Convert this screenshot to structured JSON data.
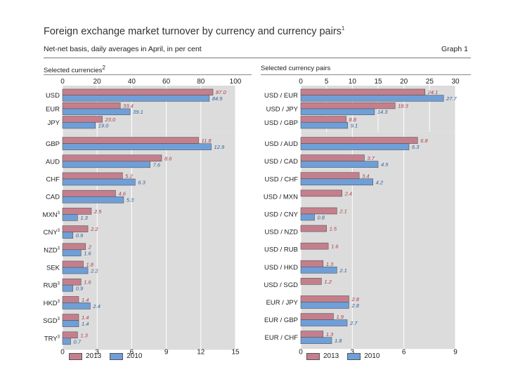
{
  "header": {
    "title": "Foreign exchange market turnover by currency and currency pairs",
    "title_note": "1",
    "subtitle": "Net-net basis, daily averages in April, in per cent",
    "graph_label": "Graph 1"
  },
  "colors": {
    "series_2013": "#c57f8c",
    "series_2010": "#6f9fd8",
    "panel_bg": "#dcdcdc"
  },
  "chart_data": [
    {
      "type": "bar",
      "orientation": "horizontal",
      "panel": "left-top",
      "title": "Selected currencies",
      "title_note": "2",
      "categories": [
        "USD",
        "EUR",
        "JPY"
      ],
      "category_notes": [
        "",
        "",
        ""
      ],
      "series": [
        {
          "name": "2013",
          "values": [
            87.0,
            33.4,
            23.0
          ],
          "labels": [
            "87.0",
            "33.4",
            "23.0"
          ]
        },
        {
          "name": "2010",
          "values": [
            84.9,
            39.1,
            19.0
          ],
          "labels": [
            "84.9",
            "39.1",
            "19.0"
          ]
        }
      ],
      "xlim": [
        0,
        100
      ],
      "ticks": [
        0,
        20,
        40,
        60,
        80,
        100
      ],
      "tick_labels": [
        "0",
        "20",
        "40",
        "60",
        "80",
        "100"
      ],
      "axis_position": "top"
    },
    {
      "type": "bar",
      "orientation": "horizontal",
      "panel": "left-bottom",
      "categories": [
        "GBP",
        "AUD",
        "CHF",
        "CAD",
        "MXN",
        "CNY",
        "NZD",
        "SEK",
        "RUB",
        "HKD",
        "SGD",
        "TRY"
      ],
      "category_notes": [
        "",
        "",
        "",
        "",
        "3",
        "3",
        "3",
        "",
        "3",
        "3",
        "3",
        "3"
      ],
      "series": [
        {
          "name": "2013",
          "values": [
            11.8,
            8.6,
            5.2,
            4.6,
            2.5,
            2.2,
            2.0,
            1.8,
            1.6,
            1.4,
            1.4,
            1.3
          ],
          "labels": [
            "11.8",
            "8.6",
            "5.2",
            "4.6",
            "2.5",
            "2.2",
            "2",
            "1.8",
            "1.6",
            "1.4",
            "1.4",
            "1.3"
          ]
        },
        {
          "name": "2010",
          "values": [
            12.9,
            7.6,
            6.3,
            5.3,
            1.3,
            0.9,
            1.6,
            2.2,
            0.9,
            2.4,
            1.4,
            0.7
          ],
          "labels": [
            "12.9",
            "7.6",
            "6.3",
            "5.3",
            "1.3",
            "0.9",
            "1.6",
            "2.2",
            "0.9",
            "2.4",
            "1.4",
            "0.7"
          ]
        }
      ],
      "xlim": [
        0,
        15
      ],
      "ticks": [
        0,
        3,
        6,
        9,
        12,
        15
      ],
      "tick_labels": [
        "0",
        "3",
        "6",
        "9",
        "12",
        "15"
      ],
      "axis_position": "bottom"
    },
    {
      "type": "bar",
      "orientation": "horizontal",
      "panel": "right-top",
      "title": "Selected currency pairs",
      "categories": [
        "USD / EUR",
        "USD / JPY",
        "USD / GBP"
      ],
      "series": [
        {
          "name": "2013",
          "values": [
            24.1,
            18.3,
            8.8
          ],
          "labels": [
            "24.1",
            "18.3",
            "8.8"
          ]
        },
        {
          "name": "2010",
          "values": [
            27.7,
            14.3,
            9.1
          ],
          "labels": [
            "27.7",
            "14.3",
            "9.1"
          ]
        }
      ],
      "xlim": [
        0,
        30
      ],
      "ticks": [
        0,
        5,
        10,
        15,
        20,
        25,
        30
      ],
      "tick_labels": [
        "0",
        "5",
        "10",
        "15",
        "20",
        "25",
        "30"
      ],
      "axis_position": "top"
    },
    {
      "type": "bar",
      "orientation": "horizontal",
      "panel": "right-bottom",
      "categories": [
        "USD / AUD",
        "USD / CAD",
        "USD / CHF",
        "USD / MXN",
        "USD / CNY",
        "USD / NZD",
        "USD / RUB",
        "USD / HKD",
        "USD / SGD",
        "EUR / JPY",
        "EUR / GBP",
        "EUR / CHF"
      ],
      "series": [
        {
          "name": "2013",
          "values": [
            6.8,
            3.7,
            3.4,
            2.4,
            2.1,
            1.5,
            1.6,
            1.3,
            1.2,
            2.8,
            1.9,
            1.3
          ],
          "labels": [
            "6.8",
            "3.7",
            "3.4",
            "2.4",
            "2.1",
            "1.5",
            "1.6",
            "1.3",
            "1.2",
            "2.8",
            "1.9",
            "1.3"
          ]
        },
        {
          "name": "2010",
          "values": [
            6.3,
            4.5,
            4.2,
            null,
            0.8,
            null,
            null,
            2.1,
            null,
            2.8,
            2.7,
            1.8
          ],
          "labels": [
            "6.3",
            "4.5",
            "4.2",
            "",
            "0.8",
            "",
            "",
            "2.1",
            "",
            "2.8",
            "2.7",
            "1.8"
          ]
        }
      ],
      "xlim": [
        0,
        9
      ],
      "ticks": [
        0,
        3,
        6,
        9
      ],
      "tick_labels": [
        "0",
        "3",
        "6",
        "9"
      ],
      "axis_position": "bottom"
    }
  ],
  "legend": [
    {
      "label": "2013"
    },
    {
      "label": "2010"
    }
  ]
}
